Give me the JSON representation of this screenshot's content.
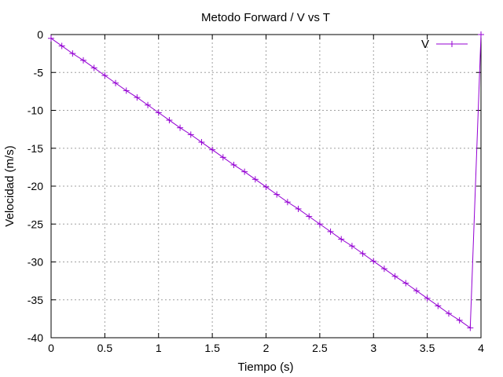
{
  "chart_data": {
    "type": "line",
    "title": "Metodo Forward / V vs T",
    "xlabel": "Tiempo (s)",
    "ylabel": "Velocidad (m/s)",
    "xlim": [
      0,
      4
    ],
    "ylim": [
      -40,
      0
    ],
    "xticks": [
      "0",
      "0.5",
      "1",
      "1.5",
      "2",
      "2.5",
      "3",
      "3.5",
      "4"
    ],
    "yticks": [
      "0",
      "-5",
      "-10",
      "-15",
      "-20",
      "-25",
      "-30",
      "-35",
      "-40"
    ],
    "grid": true,
    "legend_position": "top-right",
    "series": [
      {
        "name": "V",
        "color": "#9400d3",
        "marker": "plus",
        "x": [
          0,
          0.1,
          0.2,
          0.3,
          0.4,
          0.5,
          0.6,
          0.7,
          0.8,
          0.9,
          1.0,
          1.1,
          1.2,
          1.3,
          1.4,
          1.5,
          1.6,
          1.7,
          1.8,
          1.9,
          2.0,
          2.1,
          2.2,
          2.3,
          2.4,
          2.5,
          2.6,
          2.7,
          2.8,
          2.9,
          3.0,
          3.1,
          3.2,
          3.3,
          3.4,
          3.5,
          3.6,
          3.7,
          3.8,
          3.9,
          4.0
        ],
        "values": [
          -0.5,
          -1.5,
          -2.5,
          -3.4,
          -4.4,
          -5.4,
          -6.4,
          -7.4,
          -8.3,
          -9.3,
          -10.3,
          -11.3,
          -12.3,
          -13.2,
          -14.2,
          -15.2,
          -16.2,
          -17.2,
          -18.1,
          -19.1,
          -20.1,
          -21.1,
          -22.1,
          -23.0,
          -24.0,
          -25.0,
          -26.0,
          -27.0,
          -27.9,
          -28.9,
          -29.9,
          -30.9,
          -31.9,
          -32.8,
          -33.8,
          -34.8,
          -35.8,
          -36.8,
          -37.7,
          -38.7,
          0
        ]
      }
    ]
  }
}
